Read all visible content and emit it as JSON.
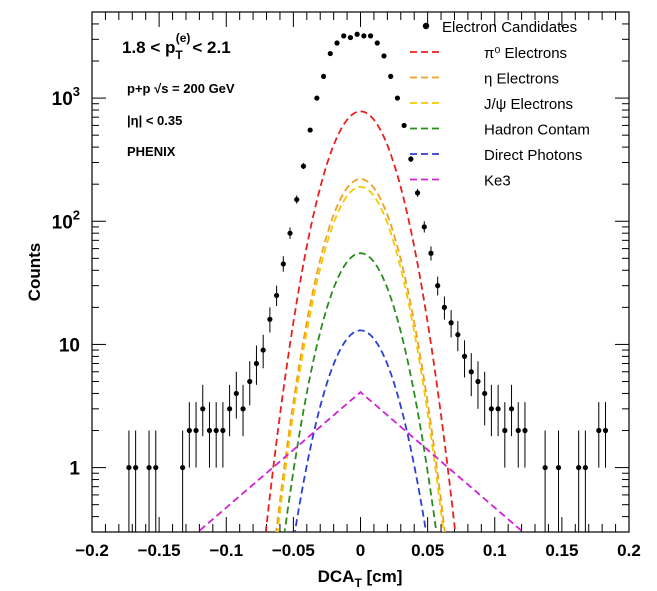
{
  "chart_data": {
    "type": "scatter",
    "xlabel": "DCA",
    "xlabel_sub": "T",
    "xlabel_unit": " [cm]",
    "ylabel": "Counts",
    "xlim": [
      -0.2,
      0.2
    ],
    "ylim": [
      0.3,
      5000
    ],
    "yscale": "log",
    "x_ticks": [
      -0.2,
      -0.15,
      -0.1,
      -0.05,
      0,
      0.05,
      0.1,
      0.15,
      0.2
    ],
    "x_tick_labels": [
      "−0.2",
      "−0.15",
      "−0.1",
      "−0.05",
      "0",
      "0.05",
      "0.1",
      "0.15",
      "0.2"
    ],
    "y_tick_labels": [
      {
        "value": 1,
        "text": "1"
      },
      {
        "value": 10,
        "text": "10"
      },
      {
        "value": 100,
        "base": "10",
        "exp": "2"
      },
      {
        "value": 1000,
        "base": "10",
        "exp": "3"
      }
    ],
    "annotations": {
      "range_pre": "1.8 < p",
      "range_sub": "T",
      "range_sup": "(e)",
      "range_post": "< 2.1",
      "system": "p+p  √s = 200 GeV",
      "eta": "|η| < 0.35",
      "experiment": "PHENIX"
    },
    "legend_position": "top-right",
    "points": {
      "name": "Electron Candidates",
      "x": [
        -0.1725,
        -0.1675,
        -0.1575,
        -0.1525,
        -0.1325,
        -0.1275,
        -0.1225,
        -0.1175,
        -0.1125,
        -0.1075,
        -0.1025,
        -0.0975,
        -0.0925,
        -0.0875,
        -0.0825,
        -0.0775,
        -0.0725,
        -0.0675,
        -0.0625,
        -0.0575,
        -0.0525,
        -0.0475,
        -0.0425,
        -0.0375,
        -0.0325,
        -0.0275,
        -0.0225,
        -0.0175,
        -0.0125,
        -0.0075,
        -0.0025,
        0.0025,
        0.0075,
        0.0125,
        0.0175,
        0.0225,
        0.0275,
        0.0325,
        0.0375,
        0.0425,
        0.0475,
        0.0525,
        0.0575,
        0.0625,
        0.0675,
        0.0725,
        0.0775,
        0.0825,
        0.0875,
        0.0925,
        0.0975,
        0.1025,
        0.1075,
        0.1125,
        0.1175,
        0.1225,
        0.1375,
        0.1475,
        0.1625,
        0.1675,
        0.1775,
        0.1825
      ],
      "y": [
        1,
        1,
        1,
        1,
        1,
        2,
        2,
        3,
        2,
        2,
        2,
        3,
        4,
        3,
        5,
        7,
        9,
        16,
        25,
        45,
        80,
        150,
        280,
        550,
        1000,
        1500,
        2300,
        2800,
        3200,
        3100,
        3300,
        3200,
        3200,
        2800,
        2200,
        1500,
        1000,
        600,
        320,
        170,
        90,
        55,
        30,
        20,
        15,
        12,
        8,
        6,
        5,
        4,
        3,
        3,
        2,
        3,
        2,
        2,
        1,
        1,
        1,
        1,
        2,
        2
      ],
      "err_lo": [
        0.7,
        0.7,
        0.7,
        0.7,
        0.7,
        1,
        1,
        1.2,
        1,
        1,
        1,
        1.2,
        1.5,
        1.2,
        1.8,
        2.3,
        2.6,
        3.5,
        4.5,
        6,
        8,
        11,
        15,
        22,
        30,
        36,
        45,
        50,
        55,
        55,
        56,
        55,
        55,
        50,
        45,
        36,
        30,
        24,
        17,
        12,
        9,
        7,
        5,
        4.1,
        3.6,
        3.2,
        2.6,
        2.2,
        2,
        1.8,
        1.2,
        1.2,
        1,
        1.2,
        1,
        1,
        0.7,
        0.7,
        0.7,
        0.7,
        1,
        1
      ],
      "err_hi": [
        1,
        1,
        1,
        1,
        1,
        1.4,
        1.4,
        1.7,
        1.4,
        1.4,
        1.4,
        1.7,
        2,
        1.7,
        2.3,
        2.8,
        3,
        4,
        5,
        7,
        9,
        12,
        17,
        24,
        32,
        39,
        48,
        53,
        57,
        56,
        58,
        57,
        57,
        53,
        47,
        39,
        32,
        25,
        18,
        13,
        10,
        7.5,
        5.5,
        4.5,
        4,
        3.5,
        2.8,
        2.5,
        2.3,
        2,
        1.7,
        1.7,
        1.4,
        1.7,
        1.4,
        1.4,
        1,
        1,
        1,
        1,
        1.4,
        1.4
      ]
    },
    "series": [
      {
        "name": "π⁰ Electrons",
        "shape": "gaussian",
        "peak": 780,
        "sigma": 0.0178,
        "color": "#e8201e"
      },
      {
        "name": "η Electrons",
        "shape": "gaussian",
        "peak": 220,
        "sigma": 0.0173,
        "color": "#f0a020"
      },
      {
        "name": "J/ψ Electrons",
        "shape": "gaussian",
        "peak": 190,
        "sigma": 0.0172,
        "color": "#f5c800"
      },
      {
        "name": "Hadron Contam",
        "shape": "gaussian",
        "peak": 55,
        "sigma": 0.0175,
        "color": "#2a8c1e"
      },
      {
        "name": "Direct Photons",
        "shape": "gaussian",
        "peak": 13,
        "sigma": 0.0178,
        "color": "#2b3fd6"
      },
      {
        "name": "Ke3",
        "shape": "laplace",
        "peak": 4.1,
        "scale": 0.0463,
        "color": "#d020d8"
      }
    ]
  }
}
